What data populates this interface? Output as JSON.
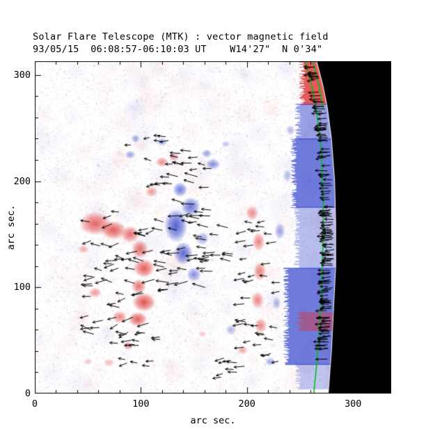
{
  "page": {
    "background": "#ffffff"
  },
  "chart_data": {
    "type": "heatmap",
    "title": "Solar Flare Telescope (MTK) : vector magnetic field",
    "subtitle": "93/05/15  06:08:57-06:10:03 UT    W14'27\"  N 0'34\"",
    "xlabel": "arc sec.",
    "ylabel": "arc sec.",
    "xlim": [
      0,
      336
    ],
    "ylim": [
      0,
      313
    ],
    "xticks": [
      0,
      100,
      200,
      300
    ],
    "yticks": [
      0,
      100,
      200,
      300
    ],
    "minor_tick_step": 20,
    "legend": "red = positive line-of-sight magnetic polarity, blue = negative polarity, black arrows = transverse field vectors, green line = limb contour, black area = off-limb sky",
    "colors": {
      "positive": "#dd3333",
      "negative": "#3344cc",
      "contour": "#00c020",
      "off_limb": "#000000",
      "axis": "#000000"
    },
    "limb": [
      [
        0,
        277
      ],
      [
        40,
        280
      ],
      [
        80,
        282
      ],
      [
        120,
        284
      ],
      [
        160,
        284
      ],
      [
        200,
        283
      ],
      [
        240,
        280
      ],
      [
        270,
        276
      ],
      [
        290,
        272
      ],
      [
        313,
        266
      ]
    ],
    "green_contours": [
      [
        [
          0,
          263
        ],
        [
          30,
          266
        ],
        [
          60,
          268
        ],
        [
          90,
          270
        ],
        [
          120,
          271
        ],
        [
          150,
          272
        ],
        [
          180,
          272
        ],
        [
          210,
          271
        ],
        [
          240,
          269
        ],
        [
          270,
          265
        ],
        [
          290,
          261
        ],
        [
          313,
          255
        ]
      ],
      [
        [
          268,
          272
        ],
        [
          290,
          268
        ],
        [
          313,
          262
        ]
      ]
    ],
    "blobs": {
      "positive": [
        [
          57,
          160,
          15,
          11,
          0.75
        ],
        [
          74,
          154,
          12,
          9,
          0.8
        ],
        [
          90,
          150,
          9,
          8,
          0.7
        ],
        [
          99,
          136,
          8,
          9,
          0.7
        ],
        [
          103,
          118,
          10,
          9,
          0.8
        ],
        [
          98,
          101,
          7,
          7,
          0.7
        ],
        [
          103,
          86,
          11,
          9,
          0.85
        ],
        [
          97,
          70,
          9,
          7,
          0.8
        ],
        [
          80,
          72,
          7,
          6,
          0.6
        ],
        [
          57,
          95,
          6,
          5,
          0.5
        ],
        [
          46,
          136,
          5,
          4,
          0.4
        ],
        [
          88,
          45,
          5,
          4,
          0.55
        ],
        [
          70,
          29,
          5,
          4,
          0.35
        ],
        [
          110,
          190,
          6,
          5,
          0.5
        ],
        [
          120,
          218,
          6,
          5,
          0.55
        ],
        [
          131,
          223,
          5,
          4,
          0.5
        ],
        [
          205,
          170,
          6,
          7,
          0.55
        ],
        [
          211,
          143,
          6,
          9,
          0.6
        ],
        [
          212,
          115,
          6,
          9,
          0.6
        ],
        [
          210,
          88,
          6,
          8,
          0.6
        ],
        [
          213,
          64,
          6,
          7,
          0.6
        ],
        [
          196,
          41,
          5,
          4,
          0.45
        ],
        [
          158,
          56,
          4,
          3,
          0.3
        ],
        [
          50,
          30,
          4,
          3,
          0.3
        ]
      ],
      "negative": [
        [
          133,
          158,
          11,
          16,
          0.85
        ],
        [
          140,
          132,
          9,
          11,
          0.8
        ],
        [
          147,
          176,
          9,
          9,
          0.75
        ],
        [
          137,
          192,
          7,
          7,
          0.7
        ],
        [
          150,
          112,
          7,
          7,
          0.6
        ],
        [
          158,
          146,
          6,
          6,
          0.5
        ],
        [
          90,
          225,
          5,
          4,
          0.5
        ],
        [
          95,
          240,
          4,
          4,
          0.5
        ],
        [
          120,
          237,
          5,
          4,
          0.45
        ],
        [
          168,
          216,
          7,
          5,
          0.6
        ],
        [
          162,
          226,
          5,
          4,
          0.5
        ],
        [
          185,
          60,
          5,
          5,
          0.4
        ],
        [
          222,
          30,
          5,
          4,
          0.45
        ],
        [
          231,
          153,
          5,
          8,
          0.5
        ],
        [
          228,
          85,
          4,
          6,
          0.4
        ],
        [
          241,
          248,
          4,
          5,
          0.4
        ],
        [
          238,
          205,
          4,
          6,
          0.4
        ],
        [
          180,
          235,
          4,
          3,
          0.35
        ]
      ]
    },
    "limb_strips": [
      {
        "y0": 273,
        "y1": 313,
        "x0": 252,
        "color": "p",
        "a": 0.8
      },
      {
        "y0": 240,
        "y1": 273,
        "x0": 248,
        "color": "n",
        "a": 0.5
      },
      {
        "y0": 176,
        "y1": 240,
        "x0": 244,
        "color": "n",
        "a": 0.7
      },
      {
        "y0": 118,
        "y1": 176,
        "x0": 247,
        "color": "n",
        "a": 0.35
      },
      {
        "y0": 28,
        "y1": 118,
        "x0": 237,
        "color": "n",
        "a": 0.7
      },
      {
        "y0": 60,
        "y1": 76,
        "x0": 250,
        "color": "p",
        "a": 0.45
      },
      {
        "y0": 5,
        "y1": 28,
        "x0": 248,
        "color": "n",
        "a": 0.3
      }
    ],
    "arrow_clusters": [
      {
        "x0": 50,
        "x1": 112,
        "y0": 55,
        "y1": 180,
        "n": 55,
        "angle": 185,
        "spread": 30,
        "len": 9
      },
      {
        "x0": 60,
        "x1": 120,
        "y0": 25,
        "y1": 55,
        "n": 12,
        "angle": 190,
        "spread": 25,
        "len": 8
      },
      {
        "x0": 112,
        "x1": 168,
        "y0": 95,
        "y1": 205,
        "n": 50,
        "angle": 180,
        "spread": 18,
        "len": 10
      },
      {
        "x0": 160,
        "x1": 188,
        "y0": 120,
        "y1": 160,
        "n": 10,
        "angle": 178,
        "spread": 15,
        "len": 9
      },
      {
        "x0": 105,
        "x1": 175,
        "y0": 206,
        "y1": 230,
        "n": 12,
        "angle": 175,
        "spread": 15,
        "len": 8
      },
      {
        "x0": 85,
        "x1": 130,
        "y0": 232,
        "y1": 248,
        "n": 6,
        "angle": 180,
        "spread": 15,
        "len": 7
      },
      {
        "x0": 196,
        "x1": 232,
        "y0": 25,
        "y1": 175,
        "n": 38,
        "angle": 182,
        "spread": 15,
        "len": 8
      },
      {
        "x0": 160,
        "x1": 195,
        "y0": 12,
        "y1": 35,
        "n": 8,
        "angle": 185,
        "spread": 20,
        "len": 8
      },
      {
        "follow_limb": true,
        "x0": 0,
        "x1": 0,
        "y0": 30,
        "y1": 308,
        "n": 150,
        "angle": 183,
        "spread": 8,
        "len": 9
      }
    ],
    "noise": {
      "count": 17000,
      "alpha": 0.13,
      "mottle_count": 320
    }
  }
}
